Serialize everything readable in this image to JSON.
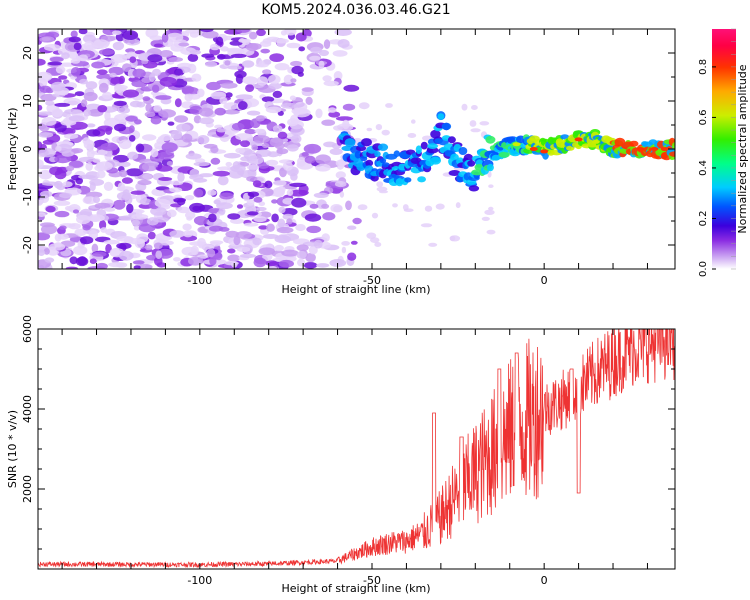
{
  "title": "KOM5.2024.036.03.46.G21",
  "chart_data": [
    {
      "type": "heatmap",
      "xlabel": "Height of straight line (km)",
      "ylabel": "Frequency (Hz)",
      "xlim": [
        -147,
        38
      ],
      "ylim": [
        -25,
        25
      ],
      "xticks": [
        -100,
        -50,
        0
      ],
      "yticks": [
        -20,
        -10,
        0,
        10,
        20
      ],
      "colorbar": {
        "label": "Normalized spectral amplitude",
        "range": [
          0,
          0.95
        ],
        "ticks": [
          "0.0",
          "0.2",
          "0.4",
          "0.6",
          "0.8"
        ]
      },
      "features": {
        "noise_region_x": [
          -147,
          -58
        ],
        "signal_track": [
          {
            "x": -57,
            "y": -1
          },
          {
            "x": -52,
            "y": -2
          },
          {
            "x": -47,
            "y": -3
          },
          {
            "x": -42,
            "y": -4
          },
          {
            "x": -37,
            "y": -4
          },
          {
            "x": -32,
            "y": -1
          },
          {
            "x": -30,
            "y": 4
          },
          {
            "x": -27,
            "y": -1
          },
          {
            "x": -24,
            "y": -3
          },
          {
            "x": -20,
            "y": -6
          },
          {
            "x": -17,
            "y": -1
          },
          {
            "x": -12,
            "y": 0
          },
          {
            "x": -7,
            "y": 1
          },
          {
            "x": -3,
            "y": 1
          },
          {
            "x": 0,
            "y": 0
          },
          {
            "x": 5,
            "y": 1
          },
          {
            "x": 10,
            "y": 2
          },
          {
            "x": 15,
            "y": 2
          },
          {
            "x": 20,
            "y": 0
          },
          {
            "x": 25,
            "y": 0
          },
          {
            "x": 30,
            "y": 0
          },
          {
            "x": 38,
            "y": 0
          }
        ]
      }
    },
    {
      "type": "line",
      "xlabel": "Height of straight line (km)",
      "ylabel": "SNR (10 * v/v)",
      "xlim": [
        -147,
        38
      ],
      "ylim": [
        0,
        6000
      ],
      "xticks": [
        -100,
        -50,
        0
      ],
      "yticks": [
        2000,
        4000,
        6000
      ],
      "color": "#ee3333",
      "envelope": [
        {
          "x": -147,
          "y": 120
        },
        {
          "x": -100,
          "y": 110
        },
        {
          "x": -80,
          "y": 130
        },
        {
          "x": -60,
          "y": 200
        },
        {
          "x": -55,
          "y": 380
        },
        {
          "x": -50,
          "y": 550
        },
        {
          "x": -45,
          "y": 650
        },
        {
          "x": -40,
          "y": 700
        },
        {
          "x": -35,
          "y": 900
        },
        {
          "x": -30,
          "y": 1300
        },
        {
          "x": -25,
          "y": 1900
        },
        {
          "x": -20,
          "y": 2400
        },
        {
          "x": -15,
          "y": 2900
        },
        {
          "x": -10,
          "y": 3400
        },
        {
          "x": -5,
          "y": 3700
        },
        {
          "x": 0,
          "y": 4000
        },
        {
          "x": 5,
          "y": 4200
        },
        {
          "x": 10,
          "y": 4500
        },
        {
          "x": 15,
          "y": 4900
        },
        {
          "x": 20,
          "y": 5200
        },
        {
          "x": 25,
          "y": 5500
        },
        {
          "x": 30,
          "y": 5650
        },
        {
          "x": 38,
          "y": 5750
        }
      ],
      "spikes": [
        {
          "x": -32,
          "y": 3900
        },
        {
          "x": -24,
          "y": 3300
        },
        {
          "x": -13,
          "y": 5000
        },
        {
          "x": -8,
          "y": 5400
        },
        {
          "x": 8,
          "y": 5000
        },
        {
          "x": 10,
          "y": 1900
        }
      ]
    }
  ]
}
